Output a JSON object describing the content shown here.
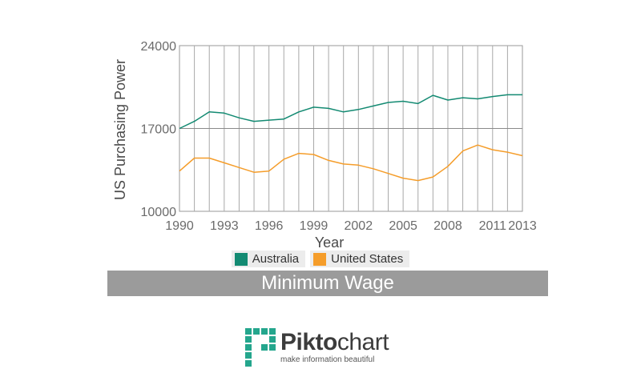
{
  "chart_data": {
    "type": "line",
    "title": "Minimum Wage",
    "xlabel": "Year",
    "ylabel": "US Purchasing Power",
    "xlim": [
      1990,
      2013
    ],
    "ylim": [
      10000,
      24000
    ],
    "x_ticks": [
      1990,
      1993,
      1996,
      1999,
      2002,
      2005,
      2008,
      2011,
      2013
    ],
    "y_ticks": [
      10000,
      17000,
      24000
    ],
    "grid": "vertical lines each year, horizontal line at 17000",
    "legend_position": "bottom",
    "x": [
      1990,
      1991,
      1992,
      1993,
      1994,
      1995,
      1996,
      1997,
      1998,
      1999,
      2000,
      2001,
      2002,
      2003,
      2004,
      2005,
      2006,
      2007,
      2008,
      2009,
      2010,
      2011,
      2012,
      2013
    ],
    "series": [
      {
        "name": "Australia",
        "color": "#138a72",
        "values": [
          17000,
          17600,
          18400,
          18300,
          17900,
          17600,
          17700,
          17800,
          18400,
          18800,
          18700,
          18400,
          18600,
          18900,
          19200,
          19300,
          19100,
          19800,
          19400,
          19600,
          19500,
          19700,
          19850,
          19850
        ]
      },
      {
        "name": "United States",
        "color": "#f59d2a",
        "values": [
          13400,
          14500,
          14500,
          14100,
          13700,
          13300,
          13400,
          14400,
          14900,
          14800,
          14300,
          14000,
          13900,
          13600,
          13200,
          12800,
          12600,
          12900,
          13800,
          15100,
          15600,
          15200,
          15000,
          14700
        ]
      }
    ]
  },
  "branding": {
    "name_bold": "Pikto",
    "name_rest": "chart",
    "tagline": "make information beautiful",
    "logo_icon": "piktochart-logo-icon",
    "accent": "#24a68d"
  }
}
